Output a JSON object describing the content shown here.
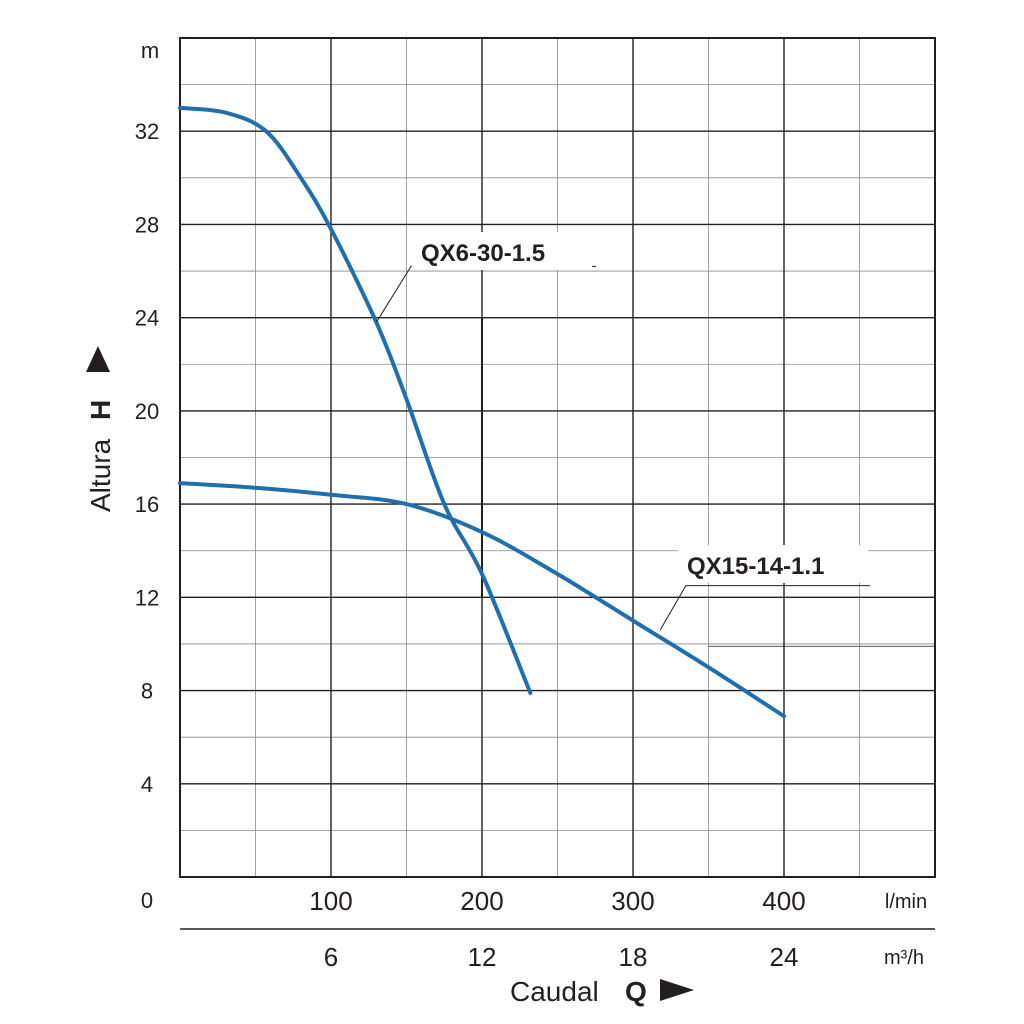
{
  "chart_data": {
    "type": "line",
    "ylabel": "Altura",
    "ylabel_symbol": "H",
    "xlabel": "Caudal",
    "xlabel_symbol": "Q",
    "y_unit": "m",
    "x_unit_primary": "l/min",
    "x_unit_secondary": "m³/h",
    "origin_label": "0",
    "ylim": [
      0,
      36
    ],
    "xlim": [
      0,
      500
    ],
    "grid": true,
    "y_ticks": [
      {
        "value": 4,
        "label": "4"
      },
      {
        "value": 8,
        "label": "8"
      },
      {
        "value": 12,
        "label": "12"
      },
      {
        "value": 16,
        "label": "16"
      },
      {
        "value": 20,
        "label": "20"
      },
      {
        "value": 24,
        "label": "24"
      },
      {
        "value": 28,
        "label": "28"
      },
      {
        "value": 32,
        "label": "32"
      }
    ],
    "x_ticks_primary": [
      {
        "value": 100,
        "label": "100"
      },
      {
        "value": 200,
        "label": "200"
      },
      {
        "value": 300,
        "label": "300"
      },
      {
        "value": 400,
        "label": "400"
      }
    ],
    "x_ticks_secondary": [
      {
        "value": 100,
        "label": "6"
      },
      {
        "value": 200,
        "label": "12"
      },
      {
        "value": 300,
        "label": "18"
      },
      {
        "value": 400,
        "label": "24"
      }
    ],
    "series": [
      {
        "name": "QX6-30-1.5",
        "color": "#1f6fae",
        "points": [
          [
            0,
            33.0
          ],
          [
            30,
            32.8
          ],
          [
            57,
            32.0
          ],
          [
            80,
            30.0
          ],
          [
            100,
            27.8
          ],
          [
            130,
            23.8
          ],
          [
            150,
            20.5
          ],
          [
            175,
            16.0
          ],
          [
            200,
            13.0
          ],
          [
            232,
            7.9
          ]
        ]
      },
      {
        "name": "QX15-14-1.1",
        "color": "#1f6fae",
        "points": [
          [
            0,
            16.9
          ],
          [
            50,
            16.7
          ],
          [
            100,
            16.4
          ],
          [
            150,
            16.0
          ],
          [
            200,
            14.8
          ],
          [
            250,
            13.0
          ],
          [
            300,
            11.0
          ],
          [
            350,
            9.0
          ],
          [
            400,
            6.9
          ]
        ]
      }
    ],
    "annotations": [
      {
        "text": "QX6-30-1.5"
      },
      {
        "text": "QX15-14-1.1"
      }
    ]
  }
}
